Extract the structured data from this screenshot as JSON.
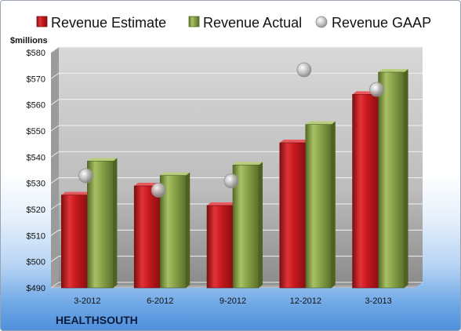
{
  "company": "HEALTHSOUTH",
  "colors": {
    "estimate": "#c8191e",
    "actual": "#8aa449",
    "gaap": "#a6a6a6"
  },
  "chart_data": {
    "type": "bar",
    "title": "",
    "xlabel": "",
    "ylabel": "$millions",
    "ylim": [
      490,
      580
    ],
    "yticks": [
      490,
      500,
      510,
      520,
      530,
      540,
      550,
      560,
      570,
      580
    ],
    "ytick_labels": [
      "$490",
      "$500",
      "$510",
      "$520",
      "$530",
      "$540",
      "$550",
      "$560",
      "$570",
      "$580"
    ],
    "grid": true,
    "legend_position": "top",
    "categories": [
      "3-2012",
      "6-2012",
      "9-2012",
      "12-2012",
      "3-2013"
    ],
    "series": [
      {
        "name": "Revenue Estimate",
        "kind": "bar",
        "values": [
          525.5,
          529.0,
          521.5,
          545.5,
          564.0
        ]
      },
      {
        "name": "Revenue Actual",
        "kind": "bar",
        "values": [
          538.5,
          533.0,
          537.0,
          552.5,
          572.5
        ]
      },
      {
        "name": "Revenue GAAP",
        "kind": "marker",
        "values": [
          532.0,
          526.5,
          530.0,
          572.5,
          565.0
        ]
      }
    ]
  }
}
